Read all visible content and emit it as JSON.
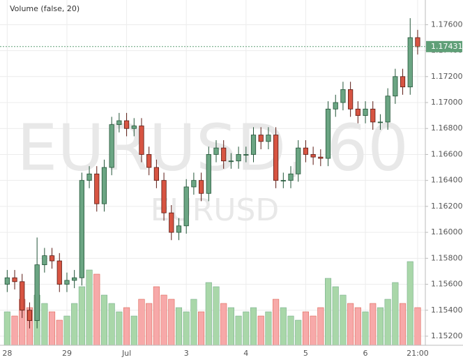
{
  "chart_data": {
    "type": "candlestick",
    "indicator_label": "Volume (false, 20)",
    "watermark": "EURUSD, 60",
    "watermark_symbol": "EURUSD",
    "categories": [
      "28",
      null,
      null,
      null,
      null,
      null,
      null,
      null,
      "29",
      null,
      null,
      null,
      null,
      null,
      null,
      null,
      "Jul",
      null,
      null,
      null,
      null,
      null,
      null,
      null,
      "3",
      null,
      null,
      null,
      null,
      null,
      null,
      null,
      "4",
      null,
      null,
      null,
      null,
      null,
      null,
      null,
      "5",
      null,
      null,
      null,
      null,
      null,
      null,
      null,
      "6",
      null,
      null,
      null,
      null,
      null,
      null,
      "21:00"
    ],
    "open": [
      1.156,
      1.1565,
      1.1562,
      1.154,
      1.1532,
      1.1575,
      1.1582,
      1.1578,
      1.156,
      1.1563,
      1.1565,
      1.164,
      1.1645,
      1.1622,
      1.165,
      1.1683,
      1.1686,
      1.168,
      1.1682,
      1.166,
      1.165,
      1.164,
      1.1615,
      1.16,
      1.1605,
      1.1635,
      1.164,
      1.163,
      1.166,
      1.1665,
      1.1655,
      1.1655,
      1.166,
      1.166,
      1.1675,
      1.167,
      1.1675,
      1.164,
      1.164,
      1.1645,
      1.1665,
      1.166,
      1.1658,
      1.1657,
      1.1695,
      1.17,
      1.171,
      1.1695,
      1.169,
      1.1695,
      1.1685,
      1.1685,
      1.1705,
      1.172,
      1.1712,
      1.175
    ],
    "high": [
      1.1571,
      1.1571,
      1.1568,
      1.1546,
      1.1596,
      1.1588,
      1.1588,
      1.1584,
      1.1569,
      1.1571,
      1.1646,
      1.1651,
      1.1651,
      1.1656,
      1.1689,
      1.1692,
      1.1692,
      1.1688,
      1.1688,
      1.1666,
      1.1656,
      1.1646,
      1.1621,
      1.1611,
      1.1641,
      1.1646,
      1.1646,
      1.1666,
      1.1671,
      1.1671,
      1.1661,
      1.1666,
      1.1666,
      1.1681,
      1.1681,
      1.1681,
      1.1681,
      1.1646,
      1.1651,
      1.1671,
      1.1671,
      1.1666,
      1.1664,
      1.1701,
      1.1706,
      1.1716,
      1.1716,
      1.1701,
      1.1701,
      1.1701,
      1.1691,
      1.1711,
      1.1726,
      1.1726,
      1.1765,
      1.1756
    ],
    "low": [
      1.1554,
      1.1556,
      1.1534,
      1.1526,
      1.1526,
      1.1569,
      1.1572,
      1.1554,
      1.1554,
      1.1557,
      1.1559,
      1.1634,
      1.1616,
      1.1616,
      1.1644,
      1.1677,
      1.1674,
      1.1674,
      1.1654,
      1.1644,
      1.1634,
      1.1609,
      1.1594,
      1.1594,
      1.1599,
      1.1629,
      1.1624,
      1.1624,
      1.1654,
      1.1649,
      1.1649,
      1.1649,
      1.1654,
      1.1654,
      1.1664,
      1.1664,
      1.1634,
      1.1634,
      1.1634,
      1.1639,
      1.1654,
      1.1652,
      1.1651,
      1.1651,
      1.1689,
      1.1694,
      1.1689,
      1.1684,
      1.1684,
      1.1679,
      1.1679,
      1.1679,
      1.1699,
      1.1706,
      1.1706,
      1.1737
    ],
    "close": [
      1.1565,
      1.1562,
      1.154,
      1.1532,
      1.1575,
      1.1582,
      1.1578,
      1.156,
      1.1563,
      1.1565,
      1.164,
      1.1645,
      1.1622,
      1.165,
      1.1683,
      1.1686,
      1.168,
      1.1682,
      1.166,
      1.165,
      1.164,
      1.1615,
      1.16,
      1.1605,
      1.1635,
      1.164,
      1.163,
      1.166,
      1.1665,
      1.1655,
      1.1655,
      1.166,
      1.166,
      1.1675,
      1.167,
      1.1675,
      1.164,
      1.164,
      1.1645,
      1.1665,
      1.166,
      1.1658,
      1.1657,
      1.1695,
      1.17,
      1.171,
      1.1695,
      1.169,
      1.1695,
      1.1685,
      1.1685,
      1.1705,
      1.172,
      1.1712,
      1.175,
      1.1743
    ],
    "volume": [
      40,
      35,
      55,
      45,
      60,
      50,
      40,
      30,
      35,
      50,
      70,
      90,
      85,
      60,
      50,
      40,
      45,
      35,
      55,
      50,
      70,
      60,
      55,
      45,
      40,
      55,
      40,
      75,
      70,
      50,
      45,
      35,
      40,
      45,
      35,
      40,
      55,
      45,
      35,
      30,
      40,
      35,
      45,
      80,
      70,
      60,
      50,
      45,
      40,
      50,
      45,
      55,
      75,
      50,
      100,
      45
    ],
    "vlim": [
      0,
      100
    ],
    "ylim": [
      1.1513,
      1.1779
    ],
    "yticks": [
      {
        "value": 1.152,
        "label": "1.15200"
      },
      {
        "value": 1.154,
        "label": "1.15400"
      },
      {
        "value": 1.156,
        "label": "1.15600"
      },
      {
        "value": 1.158,
        "label": "1.15800"
      },
      {
        "value": 1.16,
        "label": "1.16000"
      },
      {
        "value": 1.162,
        "label": "1.16200"
      },
      {
        "value": 1.164,
        "label": "1.16400"
      },
      {
        "value": 1.166,
        "label": "1.16600"
      },
      {
        "value": 1.168,
        "label": "1.16800"
      },
      {
        "value": 1.17,
        "label": "1.17000"
      },
      {
        "value": 1.172,
        "label": "1.17200"
      },
      {
        "value": 1.174,
        "label": "1.17400"
      },
      {
        "value": 1.176,
        "label": "1.17600"
      }
    ],
    "last_price": {
      "value": 1.17431,
      "label": "1.17431"
    },
    "grid": true,
    "up_color": "#6ba583",
    "down_color": "#d75442",
    "up_border": "#225437",
    "down_border": "#5b1a13",
    "volume_up_color": "#a9d7a9",
    "volume_down_color": "#f7a9a9",
    "last_price_color": "#5f9f77"
  }
}
